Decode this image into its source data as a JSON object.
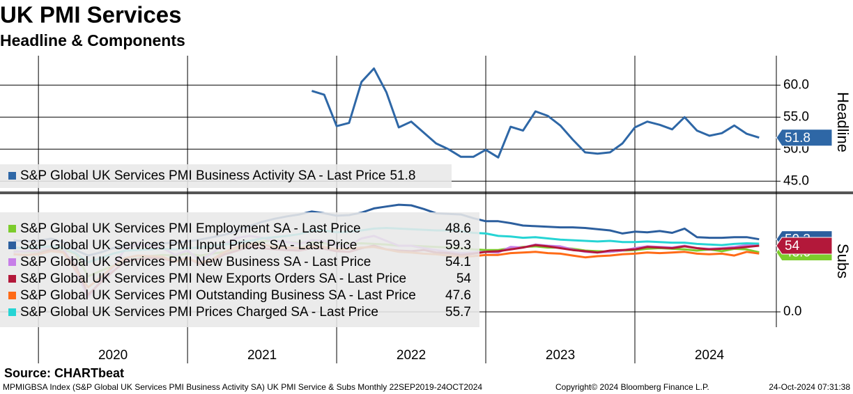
{
  "title": "UK PMI Services",
  "subtitle": "Headline & Components",
  "categories": [
    null,
    null,
    null,
    null,
    null,
    null,
    null,
    null,
    "2020",
    null,
    null,
    null,
    null,
    null,
    null,
    null,
    null,
    null,
    null,
    null,
    "2021",
    null,
    null,
    null,
    null,
    null,
    null,
    null,
    null,
    null,
    null,
    null,
    "2022",
    null,
    null,
    null,
    null,
    null,
    null,
    null,
    null,
    null,
    null,
    null,
    "2023",
    null,
    null,
    null,
    null,
    null,
    null,
    null,
    null,
    null,
    null,
    null,
    "2024",
    null,
    null,
    null,
    null
  ],
  "chart_data": [
    {
      "type": "line",
      "ylabel": "Headline",
      "ylim": [
        43.4,
        64.6
      ],
      "yticks": [
        {
          "value": 45,
          "label": "45.0"
        },
        {
          "value": 50,
          "label": "50.0"
        },
        {
          "value": 55,
          "label": "55.0"
        },
        {
          "value": 60,
          "label": "60.0"
        }
      ],
      "grid": true,
      "series": [
        {
          "name": "S&P Global UK Services PMI Business Activity SA - Last Price",
          "color": "#2e67a6",
          "flag": true,
          "values": [
            null,
            null,
            null,
            null,
            null,
            null,
            null,
            null,
            null,
            null,
            null,
            null,
            null,
            null,
            null,
            null,
            null,
            null,
            null,
            null,
            null,
            null,
            null,
            null,
            59.1,
            58.5,
            53.6,
            54.1,
            60.5,
            62.6,
            58.9,
            53.4,
            54.3,
            52.6,
            50.9,
            50.0,
            48.8,
            48.8,
            49.9,
            48.7,
            53.5,
            52.9,
            55.9,
            55.2,
            53.7,
            51.5,
            49.5,
            49.3,
            49.5,
            50.9,
            53.4,
            54.3,
            53.8,
            53.1,
            55.0,
            52.9,
            52.1,
            52.5,
            53.7,
            52.4,
            51.8
          ]
        }
      ]
    },
    {
      "type": "line",
      "ylabel": "Subs",
      "ylim": [
        -12.5,
        95.5
      ],
      "yticks": [
        {
          "value": 0,
          "label": "0.0"
        }
      ],
      "grid": true,
      "series": [
        {
          "name": "S&P Global UK Services PMI Employment SA - Last Price",
          "color": "#7ccc2c",
          "flag": true,
          "values": [
            49.5,
            49.0,
            49.5,
            51.5,
            51.0,
            47.5,
            29.0,
            33.5,
            37.5,
            41.0,
            43.5,
            45.5,
            46.5,
            46.0,
            47.5,
            46.0,
            47.5,
            49.0,
            52.0,
            55.5,
            57.5,
            58.5,
            57.0,
            56.5,
            57.0,
            56.0,
            54.5,
            55.5,
            56.0,
            55.5,
            55.0,
            54.0,
            54.0,
            53.5,
            53.0,
            52.5,
            52.0,
            51.0,
            50.5,
            50.5,
            52.0,
            53.0,
            53.5,
            52.5,
            52.5,
            51.5,
            50.0,
            49.5,
            49.0,
            50.0,
            50.5,
            51.5,
            52.0,
            51.5,
            51.0,
            50.0,
            51.0,
            49.5,
            51.5,
            51.0,
            48.6
          ]
        },
        {
          "name": "S&P Global UK Services PMI Input Prices SA - Last Price",
          "color": "#2c5f9e",
          "flag": true,
          "values": [
            58.5,
            57.6,
            58.0,
            59.8,
            57.0,
            50.5,
            46.0,
            48.5,
            52.0,
            54.5,
            54.0,
            55.5,
            56.0,
            56.5,
            57.5,
            59.0,
            61.0,
            63.0,
            66.0,
            70.0,
            73.5,
            76.0,
            78.0,
            79.5,
            82.0,
            80.5,
            78.5,
            79.0,
            81.0,
            84.5,
            86.0,
            87.5,
            87.0,
            84.0,
            80.5,
            80.0,
            79.5,
            76.5,
            74.0,
            74.0,
            72.5,
            70.5,
            70.0,
            69.5,
            69.0,
            69.0,
            68.5,
            67.5,
            66.5,
            64.0,
            65.5,
            65.0,
            66.0,
            64.5,
            68.0,
            61.0,
            60.5,
            60.5,
            61.0,
            61.0,
            59.3
          ]
        },
        {
          "name": "S&P Global UK Services PMI New Business SA - Last Price",
          "color": "#c77ee8",
          "flag": false,
          "values": [
            49.0,
            49.5,
            50.0,
            53.0,
            52.0,
            33.0,
            12.0,
            25.0,
            36.0,
            52.0,
            55.5,
            54.0,
            52.0,
            46.5,
            50.0,
            42.0,
            48.0,
            55.5,
            60.5,
            62.0,
            60.5,
            58.0,
            57.0,
            55.5,
            58.5,
            58.0,
            54.0,
            54.0,
            60.0,
            62.0,
            58.0,
            54.0,
            54.0,
            52.0,
            50.5,
            49.0,
            48.0,
            48.5,
            49.0,
            48.5,
            53.0,
            52.5,
            55.0,
            54.0,
            53.5,
            51.0,
            49.0,
            48.5,
            49.0,
            50.0,
            52.0,
            53.5,
            53.0,
            52.5,
            54.0,
            52.0,
            51.5,
            52.0,
            53.0,
            54.5,
            54.1
          ]
        },
        {
          "name": "S&P Global UK Services PMI New Exports Orders SA - Last Price",
          "color": "#b3183a",
          "flag": true,
          "values": [
            47.0,
            46.5,
            47.5,
            50.5,
            49.0,
            38.0,
            14.0,
            24.0,
            33.0,
            41.5,
            43.0,
            44.0,
            43.5,
            41.0,
            44.0,
            39.0,
            42.0,
            47.0,
            50.0,
            53.5,
            52.0,
            51.0,
            50.5,
            50.0,
            52.0,
            51.5,
            49.5,
            49.0,
            52.0,
            54.0,
            51.0,
            50.0,
            49.5,
            50.5,
            48.5,
            48.0,
            46.5,
            47.5,
            49.0,
            49.5,
            51.0,
            52.5,
            54.5,
            53.5,
            52.0,
            50.5,
            49.5,
            48.5,
            50.0,
            50.5,
            51.0,
            53.0,
            52.5,
            52.0,
            53.5,
            52.0,
            51.0,
            51.5,
            52.0,
            53.0,
            54.0
          ]
        },
        {
          "name": "S&P Global UK Services PMI Outstanding Business SA - Last Price",
          "color": "#ff6b17",
          "flag": false,
          "values": [
            47.0,
            46.5,
            47.0,
            49.5,
            48.5,
            34.0,
            20.0,
            28.0,
            37.0,
            44.0,
            46.0,
            45.5,
            45.0,
            41.0,
            44.0,
            40.0,
            43.0,
            49.0,
            53.0,
            55.5,
            55.0,
            53.0,
            52.5,
            52.0,
            53.5,
            53.0,
            51.0,
            51.5,
            52.5,
            53.0,
            51.0,
            49.0,
            48.5,
            47.5,
            47.0,
            46.0,
            45.0,
            45.5,
            46.5,
            46.5,
            48.0,
            48.5,
            49.0,
            48.0,
            47.5,
            46.0,
            44.5,
            45.5,
            46.0,
            47.0,
            47.5,
            48.5,
            48.0,
            48.5,
            49.0,
            47.5,
            47.0,
            47.5,
            46.0,
            49.0,
            47.6
          ]
        },
        {
          "name": "S&P Global UK Services PMI Prices Charged SA - Last Price",
          "color": "#26d4d4",
          "flag": false,
          "values": [
            52.5,
            52.0,
            53.0,
            53.5,
            52.5,
            48.0,
            40.5,
            44.0,
            47.5,
            50.0,
            50.5,
            51.0,
            51.5,
            51.0,
            52.0,
            52.5,
            54.0,
            55.0,
            56.5,
            58.0,
            60.0,
            61.0,
            62.0,
            63.5,
            66.0,
            66.5,
            65.0,
            65.5,
            66.5,
            68.0,
            68.5,
            68.0,
            67.5,
            67.0,
            66.5,
            66.5,
            66.0,
            64.5,
            64.0,
            62.0,
            61.5,
            60.5,
            61.0,
            60.0,
            59.0,
            58.5,
            58.0,
            57.5,
            58.0,
            57.0,
            57.0,
            57.5,
            57.0,
            56.5,
            56.5,
            55.5,
            55.0,
            54.5,
            55.5,
            56.0,
            55.7
          ]
        }
      ]
    }
  ],
  "source": "Source: CHARTbeat",
  "footer": {
    "description": "MPMIGBSA Index (S&P Global UK Services PMI Business Activity SA) UK PMI Service & Subs  Monthly 22SEP2019-24OCT2024",
    "copyright": "Copyright© 2024 Bloomberg Finance L.P.",
    "timestamp": "24-Oct-2024 07:31:38"
  }
}
